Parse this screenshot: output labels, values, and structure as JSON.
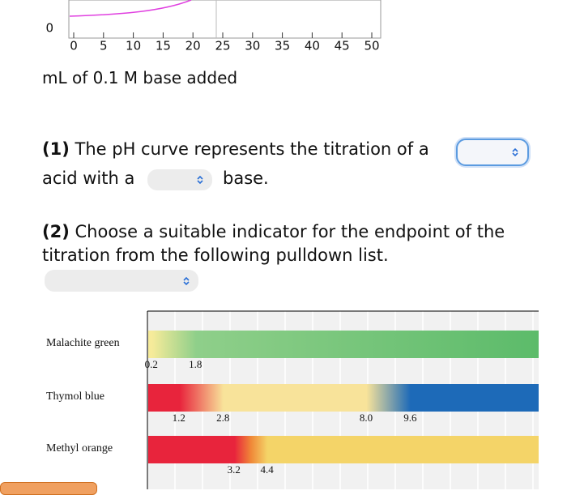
{
  "titration_plot": {
    "yticks": [
      0
    ],
    "xticks": [
      0,
      5,
      10,
      15,
      20,
      25,
      30,
      35,
      40,
      45,
      50
    ],
    "xlim": [
      0,
      50
    ],
    "xlabel": "mL of 0.1 M base added"
  },
  "question1": {
    "number": "(1)",
    "text_before": "The pH curve represents the titration of a",
    "text_middle": "acid with a",
    "text_after": "base."
  },
  "question2": {
    "number": "(2)",
    "text": "Choose a suitable indicator for the endpoint of the titration from the following pulldown list."
  },
  "indicators": [
    {
      "name": "Malachite green",
      "range": [
        0.2,
        1.8
      ]
    },
    {
      "name": "Thymol blue",
      "range": [
        1.2,
        2.8,
        8.0,
        9.6
      ],
      "range_labels": [
        "1.2",
        "2.8",
        "8.0",
        "9.6"
      ]
    },
    {
      "name": "Methyl orange",
      "range": [
        3.2,
        4.4
      ]
    }
  ]
}
